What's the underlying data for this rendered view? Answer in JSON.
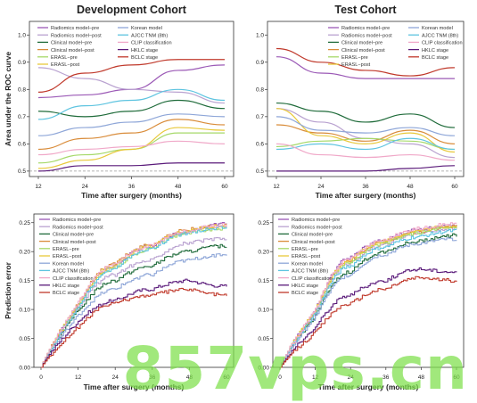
{
  "colors": {
    "radiomics_pre": "#9b59b6",
    "radiomics_post": "#b9a2d0",
    "clinical_pre": "#1f6b3a",
    "clinical_post": "#d98c3a",
    "erasl_pre": "#a6d96a",
    "erasl_post": "#e8c83a",
    "korean": "#8ea6d8",
    "ajcc": "#5ec4e0",
    "clip": "#f0a8c8",
    "hklc": "#5a1a7a",
    "bclc": "#c0392b"
  },
  "watermark": "857vps.cn",
  "chart_data": [
    {
      "type": "line",
      "title": "Development Cohort",
      "xlabel": "Time after surgery (months)",
      "ylabel": "Area under the ROC curve",
      "x": [
        12,
        24,
        36,
        48,
        60
      ],
      "xticks": [
        "12",
        "24",
        "36",
        "48",
        "60"
      ],
      "ylim": [
        0.48,
        1.05
      ],
      "yticks": [
        0.5,
        0.6,
        0.7,
        0.8,
        0.9,
        1.0
      ],
      "ytick_labels": [
        "0.5",
        "0.6",
        "0.7",
        "0.8",
        "0.9",
        "1.0"
      ],
      "reference_line": 0.5,
      "legend_columns": [
        [
          "Radiomics model−pre",
          "Radiomics model−post",
          "Clinical model−pre",
          "Clinical model−post",
          "ERASL−pre",
          "ERASL−post"
        ],
        [
          "Korean model",
          "AJCC TNM (8th)",
          "CLIP classification",
          "HKLC stage",
          "BCLC stage"
        ]
      ],
      "series": [
        {
          "name": "Radiomics model−pre",
          "color": "radiomics_pre",
          "values": [
            0.77,
            0.78,
            0.8,
            0.87,
            0.89
          ]
        },
        {
          "name": "Radiomics model−post",
          "color": "radiomics_post",
          "values": [
            0.88,
            0.84,
            0.8,
            0.79,
            0.75
          ]
        },
        {
          "name": "Clinical model−pre",
          "color": "clinical_pre",
          "values": [
            0.72,
            0.7,
            0.72,
            0.76,
            0.73
          ]
        },
        {
          "name": "Clinical model−post",
          "color": "clinical_post",
          "values": [
            0.58,
            0.62,
            0.64,
            0.69,
            0.67
          ]
        },
        {
          "name": "ERASL−pre",
          "color": "erasl_pre",
          "values": [
            0.53,
            0.56,
            0.58,
            0.64,
            0.64
          ]
        },
        {
          "name": "ERASL−post",
          "color": "erasl_post",
          "values": [
            0.51,
            0.54,
            0.58,
            0.66,
            0.65
          ]
        },
        {
          "name": "Korean model",
          "color": "korean",
          "values": [
            0.63,
            0.66,
            0.68,
            0.71,
            0.7
          ]
        },
        {
          "name": "AJCC TNM (8th)",
          "color": "ajcc",
          "values": [
            0.69,
            0.74,
            0.76,
            0.8,
            0.76
          ]
        },
        {
          "name": "CLIP classification",
          "color": "clip",
          "values": [
            0.56,
            0.58,
            0.59,
            0.61,
            0.6
          ]
        },
        {
          "name": "HKLC stage",
          "color": "hklc",
          "values": [
            0.5,
            0.52,
            0.52,
            0.53,
            0.53
          ]
        },
        {
          "name": "BCLC stage",
          "color": "bclc",
          "values": [
            0.79,
            0.86,
            0.89,
            0.91,
            0.91
          ]
        }
      ]
    },
    {
      "type": "line",
      "title": "Test Cohort",
      "xlabel": "Time after surgery (months)",
      "ylabel": "",
      "x": [
        12,
        24,
        36,
        48,
        60
      ],
      "xticks": [
        "12",
        "24",
        "36",
        "48",
        "60"
      ],
      "ylim": [
        0.48,
        1.05
      ],
      "yticks": [
        0.5,
        0.6,
        0.7,
        0.8,
        0.9,
        1.0
      ],
      "ytick_labels": [
        "0.5",
        "0.6",
        "0.7",
        "0.8",
        "0.9",
        "1.0"
      ],
      "reference_line": 0.5,
      "legend_columns": [
        [
          "Radiomics model−pre",
          "Radiomics model−post",
          "Clinical model−pre",
          "Clinical model−post",
          "ERASL−pre",
          "ERASL−post"
        ],
        [
          "Korean model",
          "AJCC TNM (8th)",
          "CLIP classification",
          "HKLC stage",
          "BCLC stage"
        ]
      ],
      "series": [
        {
          "name": "Radiomics model−pre",
          "color": "radiomics_pre",
          "values": [
            0.92,
            0.86,
            0.84,
            0.84,
            0.84
          ]
        },
        {
          "name": "Radiomics model−post",
          "color": "radiomics_post",
          "values": [
            0.73,
            0.68,
            0.62,
            0.6,
            0.55
          ]
        },
        {
          "name": "Clinical model−pre",
          "color": "clinical_pre",
          "values": [
            0.75,
            0.72,
            0.68,
            0.71,
            0.66
          ]
        },
        {
          "name": "Clinical model−post",
          "color": "clinical_post",
          "values": [
            0.67,
            0.64,
            0.61,
            0.65,
            0.6
          ]
        },
        {
          "name": "ERASL−pre",
          "color": "erasl_pre",
          "values": [
            0.59,
            0.61,
            0.62,
            0.61,
            0.58
          ]
        },
        {
          "name": "ERASL−post",
          "color": "erasl_post",
          "values": [
            0.73,
            0.63,
            0.6,
            0.64,
            0.57
          ]
        },
        {
          "name": "Korean model",
          "color": "korean",
          "values": [
            0.7,
            0.65,
            0.64,
            0.66,
            0.63
          ]
        },
        {
          "name": "AJCC TNM (8th)",
          "color": "ajcc",
          "values": [
            0.58,
            0.6,
            0.58,
            0.62,
            0.58
          ]
        },
        {
          "name": "CLIP classification",
          "color": "clip",
          "values": [
            0.6,
            0.56,
            0.55,
            0.56,
            0.54
          ]
        },
        {
          "name": "HKLC stage",
          "color": "hklc",
          "values": [
            0.5,
            0.5,
            0.5,
            0.51,
            0.52
          ]
        },
        {
          "name": "BCLC stage",
          "color": "bclc",
          "values": [
            0.95,
            0.9,
            0.87,
            0.85,
            0.88
          ]
        }
      ]
    },
    {
      "type": "line",
      "title": "",
      "xlabel": "Time after surgery (months)",
      "ylabel": "Prediction error",
      "x": [
        0,
        12,
        24,
        36,
        48,
        60
      ],
      "xticks": [
        "0",
        "12",
        "24",
        "36",
        "48",
        "60"
      ],
      "ylim": [
        0,
        0.265
      ],
      "yticks": [
        0.0,
        0.05,
        0.1,
        0.15,
        0.2,
        0.25
      ],
      "ytick_labels": [
        "0.00",
        "0.05",
        "0.10",
        "0.15",
        "0.20",
        "0.25"
      ],
      "legend_columns": [
        [
          "Radiomics model−pre",
          "Radiomics model−post",
          "Clinical model−pre",
          "Clinical model−post",
          "ERASL−pre",
          "ERASL−post",
          "Korean model",
          "AJCC TNM (8th)",
          "CLIP classification",
          "HKLC stage",
          "BCLC stage"
        ]
      ],
      "series": [
        {
          "name": "Radiomics model−pre",
          "color": "radiomics_pre",
          "values": [
            0,
            0.11,
            0.175,
            0.21,
            0.235,
            0.248
          ]
        },
        {
          "name": "Radiomics model−post",
          "color": "radiomics_post",
          "values": [
            0,
            0.105,
            0.16,
            0.185,
            0.215,
            0.222
          ]
        },
        {
          "name": "Clinical model−pre",
          "color": "clinical_pre",
          "values": [
            0,
            0.098,
            0.15,
            0.175,
            0.2,
            0.21
          ]
        },
        {
          "name": "Clinical model−post",
          "color": "clinical_post",
          "values": [
            0,
            0.112,
            0.18,
            0.212,
            0.238,
            0.245
          ]
        },
        {
          "name": "ERASL−pre",
          "color": "erasl_pre",
          "values": [
            0,
            0.108,
            0.172,
            0.205,
            0.232,
            0.24
          ]
        },
        {
          "name": "ERASL−post",
          "color": "erasl_post",
          "values": [
            0,
            0.11,
            0.176,
            0.21,
            0.236,
            0.244
          ]
        },
        {
          "name": "Korean model",
          "color": "korean",
          "values": [
            0,
            0.09,
            0.135,
            0.16,
            0.185,
            0.195
          ]
        },
        {
          "name": "AJCC TNM (8th)",
          "color": "ajcc",
          "values": [
            0,
            0.105,
            0.17,
            0.205,
            0.232,
            0.242
          ]
        },
        {
          "name": "CLIP classification",
          "color": "clip",
          "values": [
            0,
            0.112,
            0.178,
            0.21,
            0.236,
            0.246
          ]
        },
        {
          "name": "HKLC stage",
          "color": "hklc",
          "values": [
            0,
            0.08,
            0.115,
            0.135,
            0.15,
            0.14
          ]
        },
        {
          "name": "BCLC stage",
          "color": "bclc",
          "values": [
            0,
            0.07,
            0.11,
            0.125,
            0.135,
            0.125
          ]
        }
      ]
    },
    {
      "type": "line",
      "title": "",
      "xlabel": "Time after surgery (months)",
      "ylabel": "",
      "x": [
        0,
        12,
        24,
        36,
        48,
        60
      ],
      "xticks": [
        "0",
        "12",
        "24",
        "36",
        "48",
        "60"
      ],
      "ylim": [
        0,
        0.265
      ],
      "yticks": [
        0.0,
        0.05,
        0.1,
        0.15,
        0.2,
        0.25
      ],
      "ytick_labels": [
        "0.00",
        "0.05",
        "0.10",
        "0.15",
        "0.20",
        "0.25"
      ],
      "legend_columns": [
        [
          "Radiomics model−pre",
          "Radiomics model−post",
          "Clinical model−pre",
          "Clinical model−post",
          "ERASL−pre",
          "ERASL−post",
          "Korean model",
          "AJCC TNM (8th)",
          "CLIP classification",
          "HKLC stage",
          "BCLC stage"
        ]
      ],
      "series": [
        {
          "name": "Radiomics model−pre",
          "color": "radiomics_pre",
          "values": [
            0,
            0.1,
            0.19,
            0.22,
            0.238,
            0.246
          ]
        },
        {
          "name": "Radiomics model−post",
          "color": "radiomics_post",
          "values": [
            0,
            0.095,
            0.18,
            0.212,
            0.232,
            0.24
          ]
        },
        {
          "name": "Clinical model−pre",
          "color": "clinical_pre",
          "values": [
            0,
            0.09,
            0.165,
            0.2,
            0.218,
            0.228
          ]
        },
        {
          "name": "Clinical model−post",
          "color": "clinical_post",
          "values": [
            0,
            0.098,
            0.185,
            0.218,
            0.235,
            0.244
          ]
        },
        {
          "name": "ERASL−pre",
          "color": "erasl_pre",
          "values": [
            0,
            0.097,
            0.182,
            0.214,
            0.233,
            0.242
          ]
        },
        {
          "name": "ERASL−post",
          "color": "erasl_post",
          "values": [
            0,
            0.099,
            0.186,
            0.218,
            0.236,
            0.245
          ]
        },
        {
          "name": "Korean model",
          "color": "korean",
          "values": [
            0,
            0.088,
            0.16,
            0.195,
            0.214,
            0.222
          ]
        },
        {
          "name": "AJCC TNM (8th)",
          "color": "ajcc",
          "values": [
            0,
            0.095,
            0.175,
            0.208,
            0.226,
            0.236
          ]
        },
        {
          "name": "CLIP classification",
          "color": "clip",
          "values": [
            0,
            0.1,
            0.188,
            0.22,
            0.24,
            0.248
          ]
        },
        {
          "name": "HKLC stage",
          "color": "hklc",
          "values": [
            0,
            0.07,
            0.125,
            0.15,
            0.17,
            0.165
          ]
        },
        {
          "name": "BCLC stage",
          "color": "bclc",
          "values": [
            0,
            0.06,
            0.11,
            0.135,
            0.155,
            0.15
          ]
        }
      ]
    }
  ]
}
